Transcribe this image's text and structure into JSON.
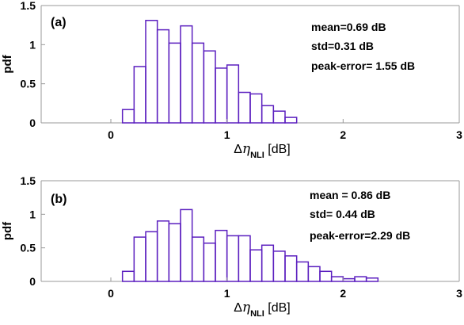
{
  "colors": {
    "bars": "#5b1fbf",
    "axes": "#9a9a9a",
    "background": "#ffffff"
  },
  "chart_data": [
    {
      "type": "bar",
      "panel_label": "(a)",
      "ylabel": "pdf",
      "xlabel": {
        "delta": "Δ",
        "eta": "η",
        "sub": "NLI",
        "unit": " [dB]"
      },
      "xlim": [
        -0.6,
        3
      ],
      "ylim": [
        0,
        1.5
      ],
      "xticks": [
        "0",
        "1",
        "2",
        "3"
      ],
      "yticks": [
        "0",
        "0.5",
        "1",
        "1.5"
      ],
      "bin_width": 0.1,
      "bin_edges_start": [
        0.1,
        0.2,
        0.3,
        0.4,
        0.5,
        0.6,
        0.7,
        0.8,
        0.9,
        1.0,
        1.1,
        1.2,
        1.3,
        1.4,
        1.5
      ],
      "values": [
        0.17,
        0.72,
        1.31,
        1.19,
        1.02,
        1.24,
        1.02,
        0.92,
        0.7,
        0.74,
        0.39,
        0.37,
        0.22,
        0.15,
        0.07
      ],
      "annotations": [
        "mean=0.69 dB",
        "std=0.31 dB",
        "peak-error= 1.55 dB"
      ]
    },
    {
      "type": "bar",
      "panel_label": "(b)",
      "ylabel": "pdf",
      "xlabel": {
        "delta": "Δ",
        "eta": "η",
        "sub": "NLI",
        "unit": " [dB]"
      },
      "xlim": [
        -0.6,
        3
      ],
      "ylim": [
        0,
        1.5
      ],
      "xticks": [
        "0",
        "1",
        "2",
        "3"
      ],
      "yticks": [
        "0",
        "0.5",
        "1",
        "1.5"
      ],
      "bin_width": 0.1,
      "bin_edges_start": [
        0.1,
        0.2,
        0.3,
        0.4,
        0.5,
        0.6,
        0.7,
        0.8,
        0.9,
        1.0,
        1.1,
        1.2,
        1.3,
        1.4,
        1.5,
        1.6,
        1.7,
        1.8,
        1.9,
        2.0,
        2.1,
        2.2
      ],
      "values": [
        0.15,
        0.66,
        0.74,
        0.9,
        0.86,
        1.07,
        0.66,
        0.57,
        0.76,
        0.68,
        0.68,
        0.47,
        0.54,
        0.45,
        0.38,
        0.29,
        0.22,
        0.15,
        0.07,
        0.04,
        0.07,
        0.05
      ],
      "annotations": [
        "mean = 0.86 dB",
        "std= 0.44 dB",
        "peak-error=2.29 dB"
      ]
    }
  ]
}
